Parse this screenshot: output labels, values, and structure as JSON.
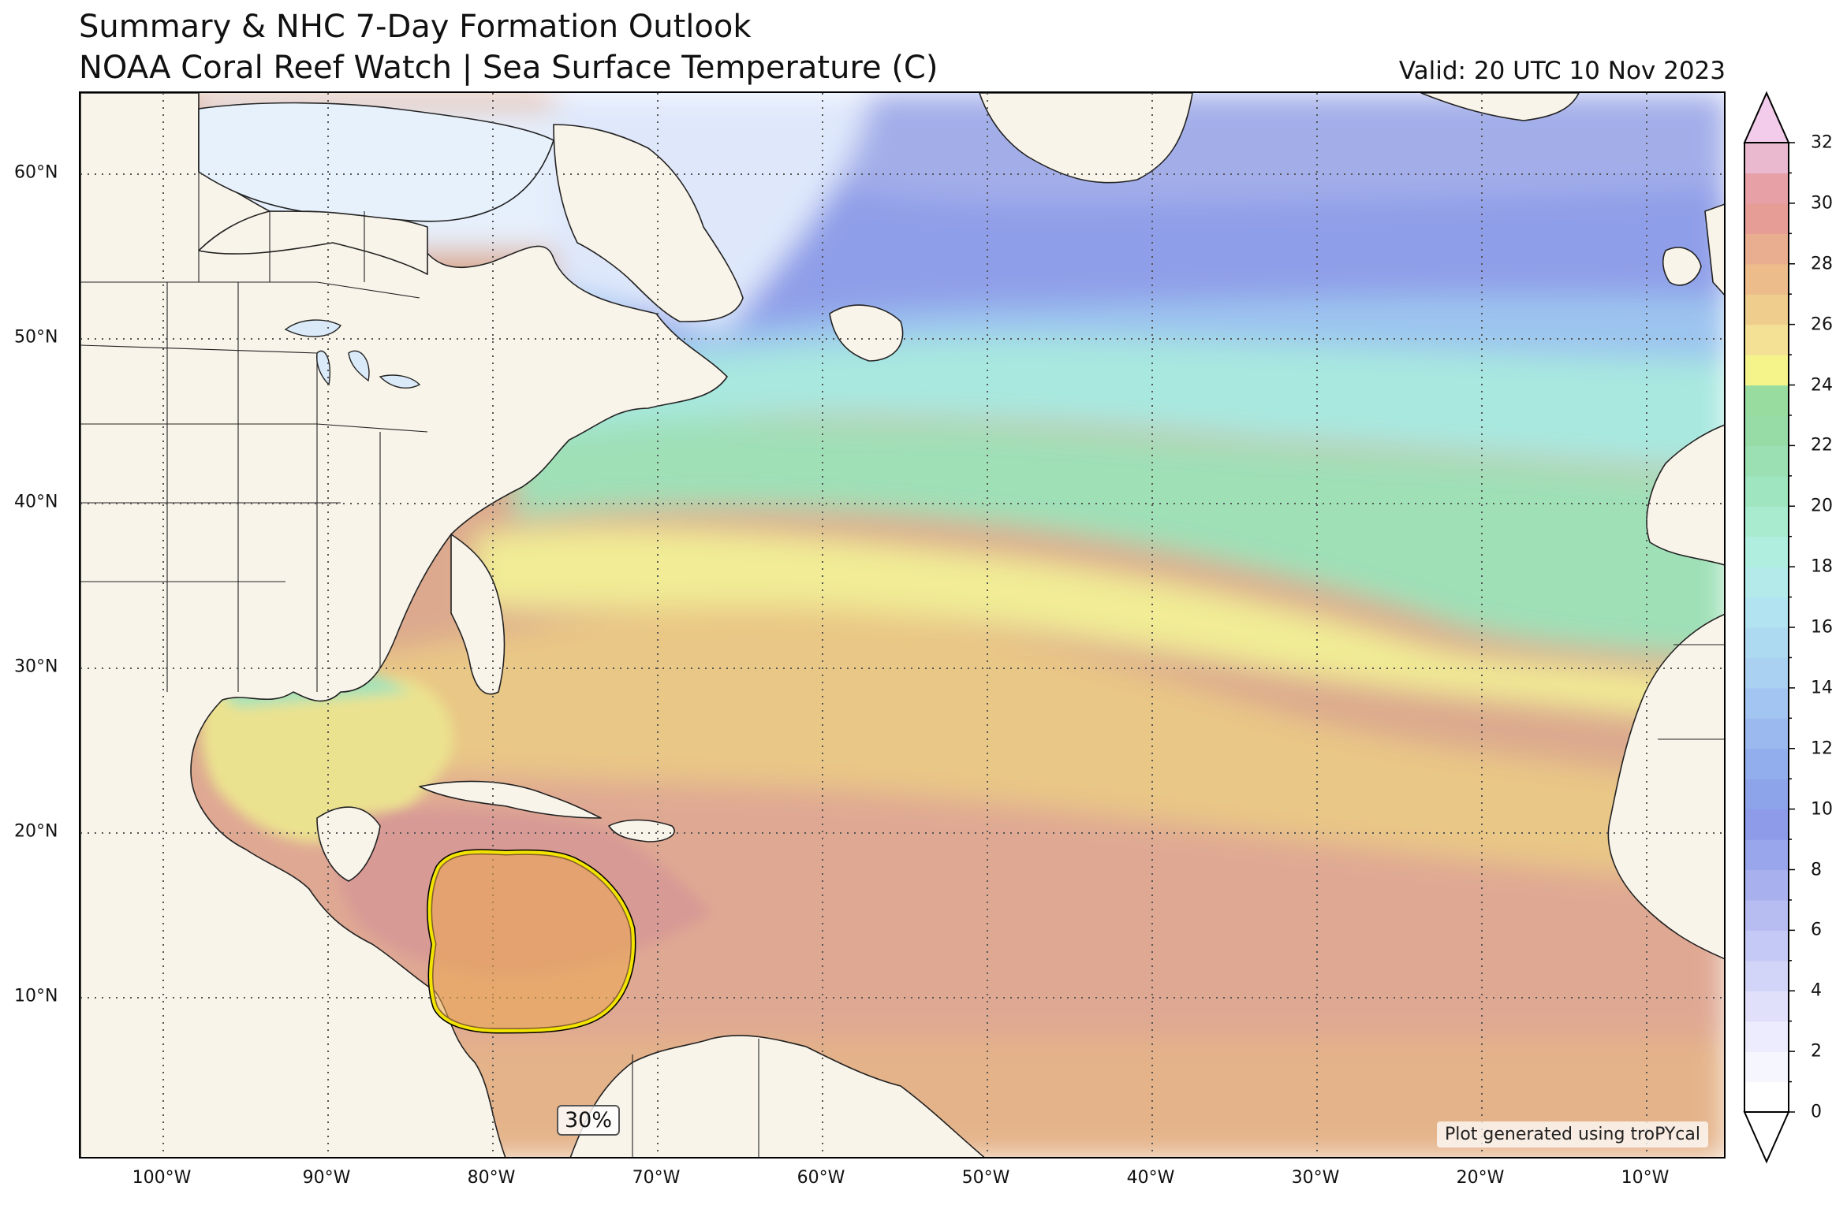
{
  "header": {
    "title": "Summary & NHC 7-Day Formation Outlook",
    "subtitle": "NOAA Coral Reef Watch | Sea Surface Temperature (C)",
    "valid": "Valid: 20 UTC 10 Nov 2023"
  },
  "map": {
    "lat_labels": [
      "60°N",
      "50°N",
      "40°N",
      "30°N",
      "20°N",
      "10°N"
    ],
    "lon_labels": [
      "100°W",
      "90°W",
      "80°W",
      "70°W",
      "60°W",
      "50°W",
      "40°W",
      "30°W",
      "20°W",
      "10°W"
    ],
    "outlook_probability": "30%",
    "credit": "Plot generated using troPYcal",
    "outlook_color": "#f2e400"
  },
  "colorbar": {
    "ticks": [
      "0",
      "2",
      "4",
      "6",
      "8",
      "10",
      "12",
      "14",
      "16",
      "18",
      "20",
      "22",
      "24",
      "26",
      "28",
      "30",
      "32"
    ]
  }
}
